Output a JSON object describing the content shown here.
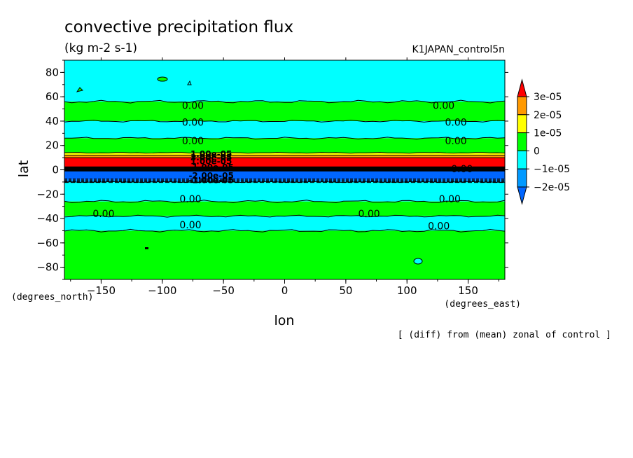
{
  "chart_data": {
    "type": "heatmap",
    "title": "convective precipitation flux",
    "units": "(kg m-2 s-1)",
    "run_label": "K1JAPAN_control5n",
    "xlabel": "lon",
    "ylabel": "lat",
    "x_unit_label": "(degrees_east)",
    "y_unit_label": "(degrees_north)",
    "note": "[ (diff) from (mean) zonal of control ]",
    "xlim": [
      -180,
      180
    ],
    "ylim": [
      -90,
      90
    ],
    "x_ticks": [
      -150,
      -100,
      -50,
      0,
      50,
      100,
      150
    ],
    "x_tick_labels": [
      "−150",
      "−100",
      "−50",
      "0",
      "50",
      "100",
      "150"
    ],
    "y_ticks": [
      -80,
      -60,
      -40,
      -20,
      0,
      20,
      40,
      60,
      80
    ],
    "y_tick_labels": [
      "−80",
      "−60",
      "−40",
      "−20",
      "0",
      "20",
      "40",
      "60",
      "80"
    ],
    "legend_placement": "right",
    "levels": [
      {
        "label": "3e-05",
        "color": "#ff0000"
      },
      {
        "label": "2e-05",
        "color": "#ff9900"
      },
      {
        "label": "1e-05",
        "color": "#ffff00"
      },
      {
        "label": "0",
        "color": "#00ff00"
      },
      {
        "label": "−1e-05",
        "color": "#00ffff"
      },
      {
        "label": "−2e-05",
        "color": "#0099ff"
      },
      {
        "label": "",
        "color": "#0066ff"
      }
    ],
    "bands": [
      {
        "lat_top": 90,
        "lat_bottom": 56,
        "color": "#00ffff"
      },
      {
        "lat_top": 56,
        "lat_bottom": 40,
        "color": "#00ff00"
      },
      {
        "lat_top": 40,
        "lat_bottom": 26,
        "color": "#00ffff"
      },
      {
        "lat_top": 26,
        "lat_bottom": 14,
        "color": "#00ff00"
      },
      {
        "lat_top": 14,
        "lat_bottom": 12,
        "color": "#ffff00"
      },
      {
        "lat_top": 12,
        "lat_bottom": 10,
        "color": "#ff9900"
      },
      {
        "lat_top": 10,
        "lat_bottom": 2,
        "color": "#ff0000"
      },
      {
        "lat_top": 2,
        "lat_bottom": -8,
        "color": "#0066ff"
      },
      {
        "lat_top": -8,
        "lat_bottom": -10,
        "color": "#0099ff"
      },
      {
        "lat_top": -10,
        "lat_bottom": -26,
        "color": "#00ffff"
      },
      {
        "lat_top": -26,
        "lat_bottom": -38,
        "color": "#00ff00"
      },
      {
        "lat_top": -38,
        "lat_bottom": -50,
        "color": "#00ffff"
      },
      {
        "lat_top": -50,
        "lat_bottom": -90,
        "color": "#00ff00"
      }
    ],
    "contours": [
      {
        "lat": 56,
        "wobble": 2.0
      },
      {
        "lat": 40,
        "wobble": 1.5
      },
      {
        "lat": 26,
        "wobble": 1.5
      },
      {
        "lat": 14,
        "wobble": 0.6
      },
      {
        "lat": -10,
        "wobble": 0.6
      },
      {
        "lat": -26,
        "wobble": 2.0
      },
      {
        "lat": -38,
        "wobble": 1.5
      },
      {
        "lat": -50,
        "wobble": 2.0
      }
    ],
    "contour_labels": [
      {
        "lon": -75,
        "lat": 53,
        "text": "0.00"
      },
      {
        "lon": 130,
        "lat": 53,
        "text": "0.00"
      },
      {
        "lon": -75,
        "lat": 39,
        "text": "0.00"
      },
      {
        "lon": 140,
        "lat": 39,
        "text": "0.00"
      },
      {
        "lon": -75,
        "lat": 24,
        "text": "0.00"
      },
      {
        "lon": 140,
        "lat": 24,
        "text": "0.00"
      },
      {
        "lon": 145,
        "lat": 1,
        "text": "0.00"
      },
      {
        "lon": -77,
        "lat": -24,
        "text": "0.00"
      },
      {
        "lon": 135,
        "lat": -24,
        "text": "0.00"
      },
      {
        "lon": -148,
        "lat": -36,
        "text": "0.00"
      },
      {
        "lon": 69,
        "lat": -36,
        "text": "0.00"
      },
      {
        "lon": -77,
        "lat": -45,
        "text": "0.00"
      },
      {
        "lon": 126,
        "lat": -46,
        "text": "0.00"
      }
    ],
    "cluttered_labels": [
      {
        "lon": -60,
        "lat": 13,
        "text": "1.00e-05"
      },
      {
        "lon": -60,
        "lat": 10,
        "text": "3.00e-05"
      },
      {
        "lon": -60,
        "lat": 7,
        "text": "1.00e-05"
      },
      {
        "lon": -60,
        "lat": 2,
        "text": "-1.00e-05"
      },
      {
        "lon": -60,
        "lat": -5,
        "text": "-2.00e-05"
      },
      {
        "lon": -60,
        "lat": -8.5,
        "text": "-1.00e-05"
      }
    ]
  }
}
